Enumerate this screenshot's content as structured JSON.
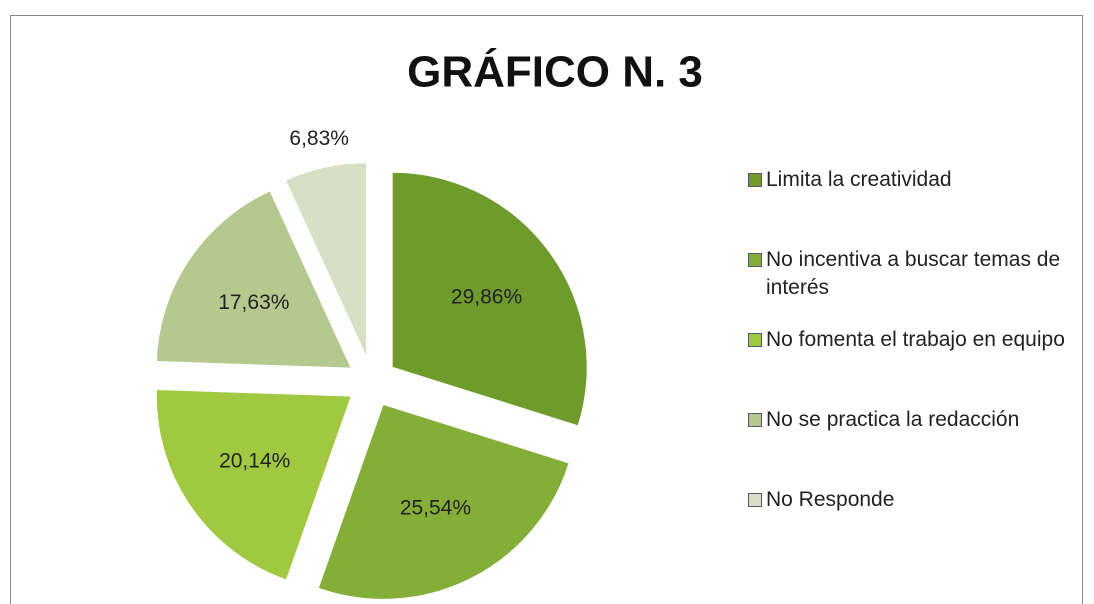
{
  "chart_data": {
    "type": "pie",
    "title": "GRÁFICO N. 3",
    "categories": [
      "Limita la creatividad",
      "No incentiva a buscar temas de interés",
      "No fomenta el trabajo en equipo",
      "No se practica la redacción",
      "No Responde"
    ],
    "values": [
      29.86,
      25.54,
      20.14,
      17.63,
      6.83
    ],
    "value_labels": [
      "29,86%",
      "25,54%",
      "20,14%",
      "17,63%",
      "6,83%"
    ],
    "colors": [
      "#6f9a2c",
      "#84ae37",
      "#a0c840",
      "#b5c98e",
      "#d7e0c4"
    ],
    "legend": "right"
  }
}
